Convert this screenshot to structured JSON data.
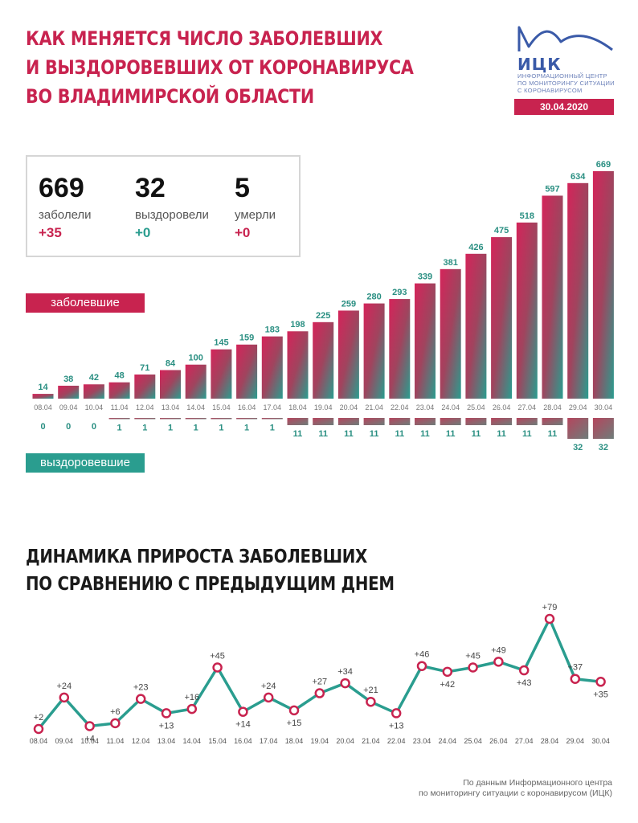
{
  "header": {
    "title_lines": [
      "КАК МЕНЯЕТСЯ ЧИСЛО ЗАБОЛЕВШИХ",
      "И ВЫЗДОРОВЕВШИХ ОТ КОРОНАВИРУСА",
      "ВО ВЛАДИМИРСКОЙ ОБЛАСТИ"
    ],
    "logo_name": "ИЦК",
    "logo_sub_lines": [
      "ИНФОРМАЦИОННЫЙ ЦЕНТР",
      "ПО МОНИТОРИНГУ СИТУАЦИИ",
      "С КОРОНАВИРУСОМ"
    ],
    "date": "30.04.2020"
  },
  "stats": [
    {
      "value": "669",
      "label": "заболели",
      "delta": "+35",
      "color": "#c8234f"
    },
    {
      "value": "32",
      "label": "выздоровели",
      "delta": "+0",
      "color": "#2a9d8f"
    },
    {
      "value": "5",
      "label": "умерли",
      "delta": "+0",
      "color": "#c8234f"
    }
  ],
  "legend": {
    "infected": "заболевшие",
    "recovered": "выздоровевшие"
  },
  "section2": {
    "title_lines": [
      "ДИНАМИКА ПРИРОСТА ЗАБОЛЕВШИХ",
      "ПО СРАВНЕНИЮ С ПРЕДЫДУЩИМ ДНЕМ"
    ]
  },
  "source_lines": [
    "По данным Информационного центра",
    "по мониторингу ситуации с коронавирусом (ИЦК)"
  ],
  "colors": {
    "accent": "#c8234f",
    "green": "#2a9d8f",
    "logo": "#3a5aa8"
  },
  "chart_data": [
    {
      "type": "bar",
      "categories": [
        "08.04",
        "09.04",
        "10.04",
        "11.04",
        "12.04",
        "13.04",
        "14.04",
        "15.04",
        "16.04",
        "17.04",
        "18.04",
        "19.04",
        "20.04",
        "21.04",
        "22.04",
        "23.04",
        "24.04",
        "25.04",
        "26.04",
        "27.04",
        "28.04",
        "29.04",
        "30.04"
      ],
      "series": [
        {
          "name": "заболевшие",
          "values": [
            14,
            38,
            42,
            48,
            71,
            84,
            100,
            145,
            159,
            183,
            198,
            225,
            259,
            280,
            293,
            339,
            381,
            426,
            475,
            518,
            597,
            634,
            669
          ]
        },
        {
          "name": "выздоровевшие",
          "values": [
            0,
            0,
            0,
            1,
            1,
            1,
            1,
            1,
            1,
            1,
            11,
            11,
            11,
            11,
            11,
            11,
            11,
            11,
            11,
            11,
            11,
            32,
            32
          ]
        }
      ]
    },
    {
      "type": "line",
      "categories": [
        "08.04",
        "09.04",
        "10.04",
        "11.04",
        "12.04",
        "13.04",
        "14.04",
        "15.04",
        "16.04",
        "17.04",
        "18.04",
        "19.04",
        "20.04",
        "21.04",
        "22.04",
        "23.04",
        "24.04",
        "25.04",
        "26.04",
        "27.04",
        "28.04",
        "29.04",
        "30.04"
      ],
      "values": [
        2,
        24,
        4,
        6,
        23,
        13,
        16,
        45,
        14,
        24,
        15,
        27,
        34,
        21,
        13,
        46,
        42,
        45,
        49,
        43,
        79,
        37,
        35
      ],
      "labels": [
        "+2",
        "+24",
        "+4",
        "+6",
        "+23",
        "+13",
        "+16",
        "+45",
        "+14",
        "+24",
        "+15",
        "+27",
        "+34",
        "+21",
        "+13",
        "+46",
        "+42",
        "+45",
        "+49",
        "+43",
        "+79",
        "+37",
        "+35"
      ]
    }
  ]
}
